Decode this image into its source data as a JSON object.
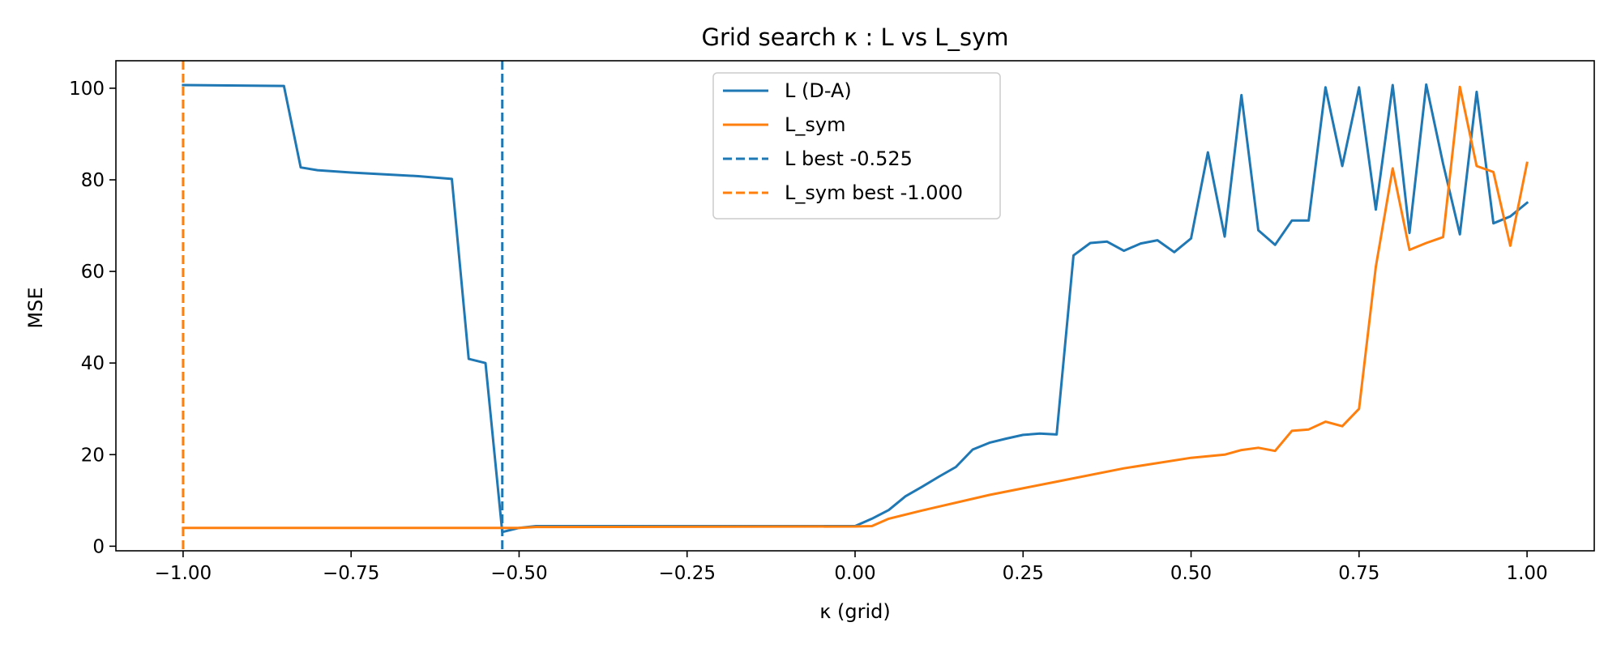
{
  "chart_data": {
    "type": "line",
    "title": "Grid search κ : L vs L_sym",
    "xlabel": "κ (grid)",
    "ylabel": "MSE",
    "xlim": [
      -1.1,
      1.1
    ],
    "ylim": [
      -1,
      106
    ],
    "xticks": [
      -1.0,
      -0.75,
      -0.5,
      -0.25,
      0.0,
      0.25,
      0.5,
      0.75,
      1.0
    ],
    "xtick_labels": [
      "−1.00",
      "−0.75",
      "−0.50",
      "−0.25",
      "0.00",
      "0.25",
      "0.50",
      "0.75",
      "1.00"
    ],
    "yticks": [
      0,
      20,
      40,
      60,
      80,
      100
    ],
    "ytick_labels": [
      "0",
      "20",
      "40",
      "60",
      "80",
      "100"
    ],
    "grid": false,
    "legend_position": "top-center",
    "series": [
      {
        "name": "L (D-A)",
        "color": "#1f77b4",
        "style": "solid",
        "x": [
          -1.0,
          -0.85,
          -0.825,
          -0.8,
          -0.75,
          -0.7,
          -0.65,
          -0.6,
          -0.575,
          -0.55,
          -0.525,
          -0.5,
          -0.475,
          -0.45,
          -0.4,
          -0.3,
          -0.2,
          -0.1,
          0.0,
          0.025,
          0.05,
          0.075,
          0.1,
          0.125,
          0.15,
          0.175,
          0.2,
          0.225,
          0.25,
          0.275,
          0.3,
          0.325,
          0.35,
          0.375,
          0.4,
          0.425,
          0.45,
          0.475,
          0.5,
          0.525,
          0.55,
          0.575,
          0.6,
          0.625,
          0.65,
          0.675,
          0.7,
          0.725,
          0.75,
          0.775,
          0.8,
          0.825,
          0.85,
          0.875,
          0.9,
          0.925,
          0.95,
          0.975,
          1.0
        ],
        "y": [
          100.7,
          100.5,
          82.7,
          82.1,
          81.6,
          81.2,
          80.8,
          80.2,
          40.9,
          40.0,
          3.1,
          4.0,
          4.4,
          4.4,
          4.4,
          4.4,
          4.4,
          4.4,
          4.4,
          6.0,
          7.9,
          10.9,
          13.0,
          15.2,
          17.3,
          21.1,
          22.6,
          23.5,
          24.3,
          24.6,
          24.4,
          63.5,
          66.2,
          66.5,
          64.5,
          66.1,
          66.8,
          64.2,
          67.2,
          86.0,
          67.6,
          98.5,
          69.0,
          65.8,
          71.1,
          71.1,
          100.2,
          83.0,
          100.2,
          73.5,
          100.7,
          68.4,
          100.8,
          83.5,
          68.1,
          99.2,
          70.5,
          72.0,
          75.0
        ]
      },
      {
        "name": "L_sym",
        "color": "#ff7f0e",
        "style": "solid",
        "x": [
          -1.0,
          -0.5,
          -0.475,
          -0.45,
          0.0,
          0.025,
          0.05,
          0.1,
          0.2,
          0.3,
          0.4,
          0.5,
          0.55,
          0.575,
          0.6,
          0.625,
          0.65,
          0.675,
          0.7,
          0.725,
          0.75,
          0.775,
          0.8,
          0.825,
          0.85,
          0.875,
          0.9,
          0.925,
          0.95,
          0.975,
          1.0
        ],
        "y": [
          4.0,
          4.0,
          4.2,
          4.2,
          4.3,
          4.4,
          6.0,
          7.8,
          11.2,
          14.1,
          17.0,
          19.3,
          20.0,
          21.0,
          21.5,
          20.8,
          25.2,
          25.5,
          27.2,
          26.2,
          30.0,
          61.0,
          82.5,
          64.7,
          66.2,
          67.5,
          100.3,
          83.0,
          81.7,
          65.6,
          83.7
        ]
      }
    ],
    "reference_lines": [
      {
        "name": "L best -0.525",
        "orientation": "vertical",
        "x": -0.525,
        "color": "#1f77b4",
        "style": "dashed"
      },
      {
        "name": "L_sym best -1.000",
        "orientation": "vertical",
        "x": -1.0,
        "color": "#ff7f0e",
        "style": "dashed"
      }
    ]
  }
}
